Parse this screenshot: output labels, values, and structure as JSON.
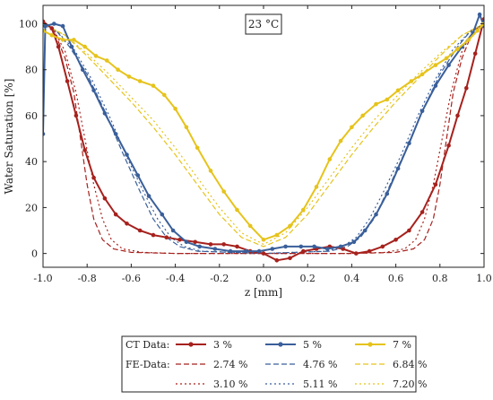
{
  "chart_data": {
    "type": "line",
    "annotation": "23 °C",
    "xlabel": "z [mm]",
    "ylabel": "Water Saturation [%]",
    "xlim": [
      -1.0,
      1.0
    ],
    "ylim": [
      -6,
      108
    ],
    "x_ticks": [
      -1.0,
      -0.8,
      -0.6,
      -0.4,
      -0.2,
      0.0,
      0.2,
      0.4,
      0.6,
      0.8,
      1.0
    ],
    "x_tick_labels": [
      "-1.0",
      "-0.8",
      "-0.6",
      "-0.4",
      "-0.2",
      "0.0",
      "0.2",
      "0.4",
      "0.6",
      "0.8",
      "1.0"
    ],
    "y_ticks": [
      0,
      20,
      40,
      60,
      80,
      100
    ],
    "y_tick_labels": [
      "0",
      "20",
      "40",
      "60",
      "80",
      "100"
    ],
    "grid": false,
    "legend_placement": "bottom",
    "legend": {
      "ct_label": "CT Data:",
      "fe_label": "FE-Data:"
    },
    "colors": {
      "red": "#a6211d",
      "blue": "#3a5f9a",
      "yellow": "#e6c31b"
    },
    "series": [
      {
        "name": "3 %",
        "group": "CT",
        "color": "red",
        "style": "solid-marker",
        "points": [
          [
            -1.0,
            101
          ],
          [
            -0.96,
            98
          ],
          [
            -0.93,
            90
          ],
          [
            -0.89,
            75
          ],
          [
            -0.85,
            60
          ],
          [
            -0.81,
            45
          ],
          [
            -0.77,
            33
          ],
          [
            -0.72,
            24
          ],
          [
            -0.67,
            17
          ],
          [
            -0.62,
            13
          ],
          [
            -0.56,
            10
          ],
          [
            -0.5,
            8
          ],
          [
            -0.44,
            7
          ],
          [
            -0.38,
            6
          ],
          [
            -0.31,
            5
          ],
          [
            -0.24,
            4
          ],
          [
            -0.18,
            4
          ],
          [
            -0.12,
            3
          ],
          [
            -0.06,
            1
          ],
          [
            0.0,
            0
          ],
          [
            0.06,
            -3
          ],
          [
            0.12,
            -2
          ],
          [
            0.18,
            1
          ],
          [
            0.24,
            2
          ],
          [
            0.3,
            3
          ],
          [
            0.36,
            2
          ],
          [
            0.42,
            0
          ],
          [
            0.48,
            1
          ],
          [
            0.54,
            3
          ],
          [
            0.6,
            6
          ],
          [
            0.66,
            10
          ],
          [
            0.72,
            18
          ],
          [
            0.78,
            30
          ],
          [
            0.84,
            47
          ],
          [
            0.88,
            60
          ],
          [
            0.92,
            72
          ],
          [
            0.96,
            87
          ],
          [
            1.0,
            102
          ]
        ]
      },
      {
        "name": "5 %",
        "group": "CT",
        "color": "blue",
        "style": "solid-marker",
        "points": [
          [
            -1.0,
            52
          ],
          [
            -0.99,
            99
          ],
          [
            -0.95,
            100
          ],
          [
            -0.91,
            99
          ],
          [
            -0.87,
            90
          ],
          [
            -0.82,
            80
          ],
          [
            -0.77,
            71
          ],
          [
            -0.72,
            61
          ],
          [
            -0.67,
            52
          ],
          [
            -0.62,
            43
          ],
          [
            -0.57,
            34
          ],
          [
            -0.52,
            25
          ],
          [
            -0.46,
            17
          ],
          [
            -0.41,
            10
          ],
          [
            -0.35,
            5
          ],
          [
            -0.29,
            3
          ],
          [
            -0.22,
            2
          ],
          [
            -0.15,
            1
          ],
          [
            -0.08,
            1
          ],
          [
            -0.02,
            1
          ],
          [
            0.04,
            2
          ],
          [
            0.1,
            3
          ],
          [
            0.17,
            3
          ],
          [
            0.23,
            3
          ],
          [
            0.29,
            2
          ],
          [
            0.35,
            3
          ],
          [
            0.41,
            5
          ],
          [
            0.46,
            10
          ],
          [
            0.51,
            17
          ],
          [
            0.56,
            26
          ],
          [
            0.61,
            37
          ],
          [
            0.66,
            48
          ],
          [
            0.72,
            62
          ],
          [
            0.78,
            73
          ],
          [
            0.84,
            82
          ],
          [
            0.9,
            90
          ],
          [
            0.95,
            96
          ],
          [
            0.98,
            104
          ],
          [
            1.0,
            99
          ]
        ]
      },
      {
        "name": "7 %",
        "group": "CT",
        "color": "yellow",
        "style": "solid-marker",
        "points": [
          [
            -1.0,
            97
          ],
          [
            -0.96,
            95
          ],
          [
            -0.91,
            93
          ],
          [
            -0.86,
            93
          ],
          [
            -0.81,
            90
          ],
          [
            -0.76,
            86
          ],
          [
            -0.71,
            84
          ],
          [
            -0.66,
            80
          ],
          [
            -0.61,
            77
          ],
          [
            -0.56,
            75
          ],
          [
            -0.5,
            73
          ],
          [
            -0.45,
            69
          ],
          [
            -0.4,
            63
          ],
          [
            -0.35,
            55
          ],
          [
            -0.3,
            46
          ],
          [
            -0.24,
            36
          ],
          [
            -0.18,
            27
          ],
          [
            -0.12,
            19
          ],
          [
            -0.06,
            12
          ],
          [
            0.0,
            6
          ],
          [
            0.06,
            8
          ],
          [
            0.12,
            12
          ],
          [
            0.18,
            19
          ],
          [
            0.24,
            29
          ],
          [
            0.3,
            41
          ],
          [
            0.35,
            49
          ],
          [
            0.4,
            55
          ],
          [
            0.45,
            60
          ],
          [
            0.51,
            65
          ],
          [
            0.56,
            67
          ],
          [
            0.61,
            71
          ],
          [
            0.67,
            75
          ],
          [
            0.72,
            78
          ],
          [
            0.78,
            82
          ],
          [
            0.83,
            85
          ],
          [
            0.88,
            89
          ],
          [
            0.93,
            93
          ],
          [
            0.97,
            97
          ],
          [
            1.0,
            100
          ]
        ]
      },
      {
        "name": "2.74 %",
        "group": "FE",
        "color": "red",
        "style": "dashed",
        "points": [
          [
            -1.0,
            100
          ],
          [
            -0.95,
            97
          ],
          [
            -0.9,
            85
          ],
          [
            -0.86,
            70
          ],
          [
            -0.83,
            50
          ],
          [
            -0.8,
            30
          ],
          [
            -0.77,
            15
          ],
          [
            -0.73,
            6
          ],
          [
            -0.68,
            2
          ],
          [
            -0.6,
            0.5
          ],
          [
            -0.4,
            0
          ],
          [
            0.0,
            0
          ],
          [
            0.4,
            0
          ],
          [
            0.6,
            0.5
          ],
          [
            0.68,
            2
          ],
          [
            0.73,
            6
          ],
          [
            0.77,
            15
          ],
          [
            0.8,
            30
          ],
          [
            0.83,
            50
          ],
          [
            0.86,
            70
          ],
          [
            0.9,
            85
          ],
          [
            0.95,
            97
          ],
          [
            1.0,
            100
          ]
        ]
      },
      {
        "name": "4.76 %",
        "group": "FE",
        "color": "blue",
        "style": "dashed",
        "points": [
          [
            -1.0,
            100
          ],
          [
            -0.94,
            97
          ],
          [
            -0.88,
            90
          ],
          [
            -0.8,
            78
          ],
          [
            -0.72,
            62
          ],
          [
            -0.64,
            44
          ],
          [
            -0.56,
            27
          ],
          [
            -0.5,
            15
          ],
          [
            -0.44,
            7
          ],
          [
            -0.38,
            3
          ],
          [
            -0.3,
            1
          ],
          [
            0.0,
            0
          ],
          [
            0.3,
            1
          ],
          [
            0.38,
            3
          ],
          [
            0.44,
            7
          ],
          [
            0.5,
            15
          ],
          [
            0.56,
            27
          ],
          [
            0.64,
            44
          ],
          [
            0.72,
            62
          ],
          [
            0.8,
            78
          ],
          [
            0.88,
            90
          ],
          [
            0.94,
            97
          ],
          [
            1.0,
            100
          ]
        ]
      },
      {
        "name": "6.84 %",
        "group": "FE",
        "color": "yellow",
        "style": "dashed",
        "points": [
          [
            -1.0,
            100
          ],
          [
            -0.9,
            95
          ],
          [
            -0.8,
            86
          ],
          [
            -0.7,
            76
          ],
          [
            -0.6,
            66
          ],
          [
            -0.5,
            55
          ],
          [
            -0.4,
            43
          ],
          [
            -0.3,
            30
          ],
          [
            -0.2,
            17
          ],
          [
            -0.1,
            7
          ],
          [
            0.0,
            3
          ],
          [
            0.1,
            7
          ],
          [
            0.2,
            17
          ],
          [
            0.3,
            30
          ],
          [
            0.4,
            43
          ],
          [
            0.5,
            55
          ],
          [
            0.6,
            66
          ],
          [
            0.7,
            76
          ],
          [
            0.8,
            86
          ],
          [
            0.9,
            95
          ],
          [
            1.0,
            100
          ]
        ]
      },
      {
        "name": "3.10 %",
        "group": "FE",
        "color": "red",
        "style": "dotted",
        "points": [
          [
            -1.0,
            100
          ],
          [
            -0.95,
            97
          ],
          [
            -0.9,
            88
          ],
          [
            -0.85,
            70
          ],
          [
            -0.81,
            50
          ],
          [
            -0.77,
            30
          ],
          [
            -0.73,
            15
          ],
          [
            -0.69,
            6
          ],
          [
            -0.64,
            2
          ],
          [
            -0.55,
            0.5
          ],
          [
            -0.4,
            0
          ],
          [
            0.0,
            0
          ],
          [
            0.4,
            0
          ],
          [
            0.55,
            0.5
          ],
          [
            0.64,
            2
          ],
          [
            0.69,
            6
          ],
          [
            0.73,
            15
          ],
          [
            0.77,
            30
          ],
          [
            0.81,
            50
          ],
          [
            0.85,
            70
          ],
          [
            0.9,
            88
          ],
          [
            0.95,
            97
          ],
          [
            1.0,
            100
          ]
        ]
      },
      {
        "name": "5.11 %",
        "group": "FE",
        "color": "blue",
        "style": "dotted",
        "points": [
          [
            -1.0,
            100
          ],
          [
            -0.93,
            96
          ],
          [
            -0.86,
            89
          ],
          [
            -0.78,
            76
          ],
          [
            -0.7,
            60
          ],
          [
            -0.62,
            42
          ],
          [
            -0.54,
            26
          ],
          [
            -0.48,
            15
          ],
          [
            -0.42,
            7
          ],
          [
            -0.36,
            3
          ],
          [
            -0.28,
            1
          ],
          [
            0.0,
            0
          ],
          [
            0.28,
            1
          ],
          [
            0.36,
            3
          ],
          [
            0.42,
            7
          ],
          [
            0.48,
            15
          ],
          [
            0.54,
            26
          ],
          [
            0.62,
            42
          ],
          [
            0.7,
            60
          ],
          [
            0.78,
            76
          ],
          [
            0.86,
            89
          ],
          [
            0.93,
            96
          ],
          [
            1.0,
            100
          ]
        ]
      },
      {
        "name": "7.20 %",
        "group": "FE",
        "color": "yellow",
        "style": "dotted",
        "points": [
          [
            -1.0,
            100
          ],
          [
            -0.9,
            95
          ],
          [
            -0.8,
            87
          ],
          [
            -0.7,
            78
          ],
          [
            -0.6,
            68
          ],
          [
            -0.5,
            58
          ],
          [
            -0.4,
            46
          ],
          [
            -0.3,
            33
          ],
          [
            -0.2,
            20
          ],
          [
            -0.1,
            9
          ],
          [
            0.0,
            4
          ],
          [
            0.1,
            9
          ],
          [
            0.2,
            20
          ],
          [
            0.3,
            33
          ],
          [
            0.4,
            46
          ],
          [
            0.5,
            58
          ],
          [
            0.6,
            68
          ],
          [
            0.7,
            78
          ],
          [
            0.8,
            87
          ],
          [
            0.9,
            95
          ],
          [
            1.0,
            100
          ]
        ]
      }
    ]
  }
}
